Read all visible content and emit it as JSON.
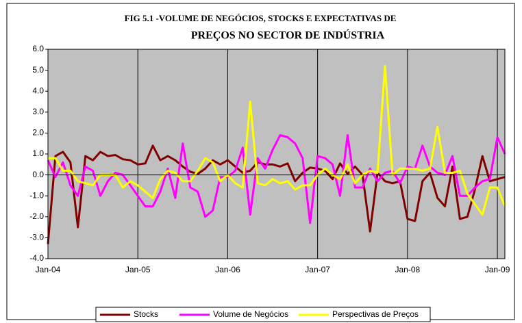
{
  "chart_data": {
    "type": "line",
    "title": [
      "FIG 5.1 -VOLUME DE NEGÓCIOS, STOCKS E EXPECTATIVAS DE",
      "PREÇOS  NO SECTOR DE INDÚSTRIA"
    ],
    "categories": [
      "Jan-04",
      null,
      null,
      null,
      null,
      null,
      null,
      null,
      null,
      null,
      null,
      null,
      "Jan-05",
      null,
      null,
      null,
      null,
      null,
      null,
      null,
      null,
      null,
      null,
      null,
      "Jan-06",
      null,
      null,
      null,
      null,
      null,
      null,
      null,
      null,
      null,
      null,
      null,
      "Jan-07",
      null,
      null,
      null,
      null,
      null,
      null,
      null,
      null,
      null,
      null,
      null,
      "Jan-08",
      null,
      null,
      null,
      null,
      null,
      null,
      null,
      null,
      null,
      null,
      null,
      "Jan-09",
      null
    ],
    "ylim": [
      -4,
      6
    ],
    "yticks": [
      {
        "value": -4,
        "label": "-4.0"
      },
      {
        "value": -3,
        "label": "-3.0"
      },
      {
        "value": -2,
        "label": "-2.0"
      },
      {
        "value": -1,
        "label": "-1.0"
      },
      {
        "value": 0,
        "label": "0.0"
      },
      {
        "value": 1,
        "label": "1.0"
      },
      {
        "value": 2,
        "label": "2.0"
      },
      {
        "value": 3,
        "label": "3.0"
      },
      {
        "value": 4,
        "label": "4.0"
      },
      {
        "value": 5,
        "label": "5.0"
      },
      {
        "value": 6,
        "label": "6.0"
      }
    ],
    "grid": true,
    "legend": "bottom",
    "plot_background": "#c0c0c0",
    "series": [
      {
        "name": "Stocks",
        "color": "#800000",
        "values": [
          -3.3,
          0.9,
          1.1,
          0.6,
          -2.5,
          0.9,
          0.7,
          1.1,
          0.9,
          0.95,
          0.75,
          0.7,
          0.5,
          0.55,
          1.4,
          0.7,
          0.9,
          0.7,
          0.4,
          0.15,
          0.05,
          0.3,
          0.7,
          0.5,
          0.7,
          0.4,
          0.1,
          0.2,
          0.6,
          0.5,
          0.5,
          0.4,
          0.55,
          -0.3,
          0.1,
          0.35,
          0.3,
          0.2,
          -0.2,
          0.55,
          0.05,
          0.4,
          0.0,
          -2.7,
          0.1,
          -0.3,
          -0.4,
          -0.3,
          -2.1,
          -2.2,
          -0.3,
          0.1,
          -1.1,
          -1.5,
          0.4,
          -2.1,
          -2.0,
          -0.7,
          0.9,
          -0.3,
          -0.2,
          -0.1
        ]
      },
      {
        "name": "Volume de Negócios",
        "color": "#ff00ff",
        "values": [
          0.7,
          -0.1,
          0.6,
          -0.5,
          -1.0,
          0.4,
          0.2,
          -1.0,
          -0.3,
          0.1,
          0.0,
          -0.5,
          -1.0,
          -1.5,
          -1.5,
          -0.8,
          0.3,
          -1.1,
          1.5,
          -0.6,
          -0.8,
          -2.0,
          -1.7,
          -0.1,
          -0.1,
          0.2,
          1.3,
          -1.9,
          0.8,
          0.3,
          1.2,
          1.9,
          1.8,
          1.5,
          0.8,
          -2.3,
          0.9,
          0.8,
          0.5,
          -1.0,
          1.9,
          -0.6,
          -0.6,
          0.3,
          -0.3,
          0.1,
          0.2,
          -0.4,
          0.4,
          0.3,
          1.4,
          0.4,
          0.1,
          0.0,
          0.9,
          -1.0,
          -1.0,
          -0.6,
          -0.3,
          -0.2,
          1.8,
          1.0
        ]
      },
      {
        "name": "Perspectivas de Preços",
        "color": "#ffff00",
        "values": [
          0.8,
          0.8,
          0.2,
          0.2,
          -0.3,
          -0.4,
          -0.5,
          0.0,
          0.0,
          0.0,
          -0.6,
          -0.3,
          -0.5,
          -0.8,
          -1.1,
          -0.2,
          0.2,
          0.1,
          -0.3,
          -0.3,
          0.2,
          0.8,
          0.6,
          -0.3,
          0.0,
          -0.4,
          -0.6,
          3.5,
          -0.4,
          -0.5,
          -0.2,
          -0.4,
          -0.3,
          -0.7,
          -0.5,
          -0.5,
          0.0,
          0.3,
          0.0,
          -0.2,
          0.5,
          -0.4,
          0.0,
          0.2,
          0.1,
          5.2,
          0.0,
          0.3,
          0.3,
          0.3,
          0.2,
          0.3,
          2.3,
          0.1,
          0.1,
          0.2,
          -0.9,
          -1.4,
          -1.9,
          -0.6,
          -0.6,
          -1.5
        ]
      }
    ]
  }
}
